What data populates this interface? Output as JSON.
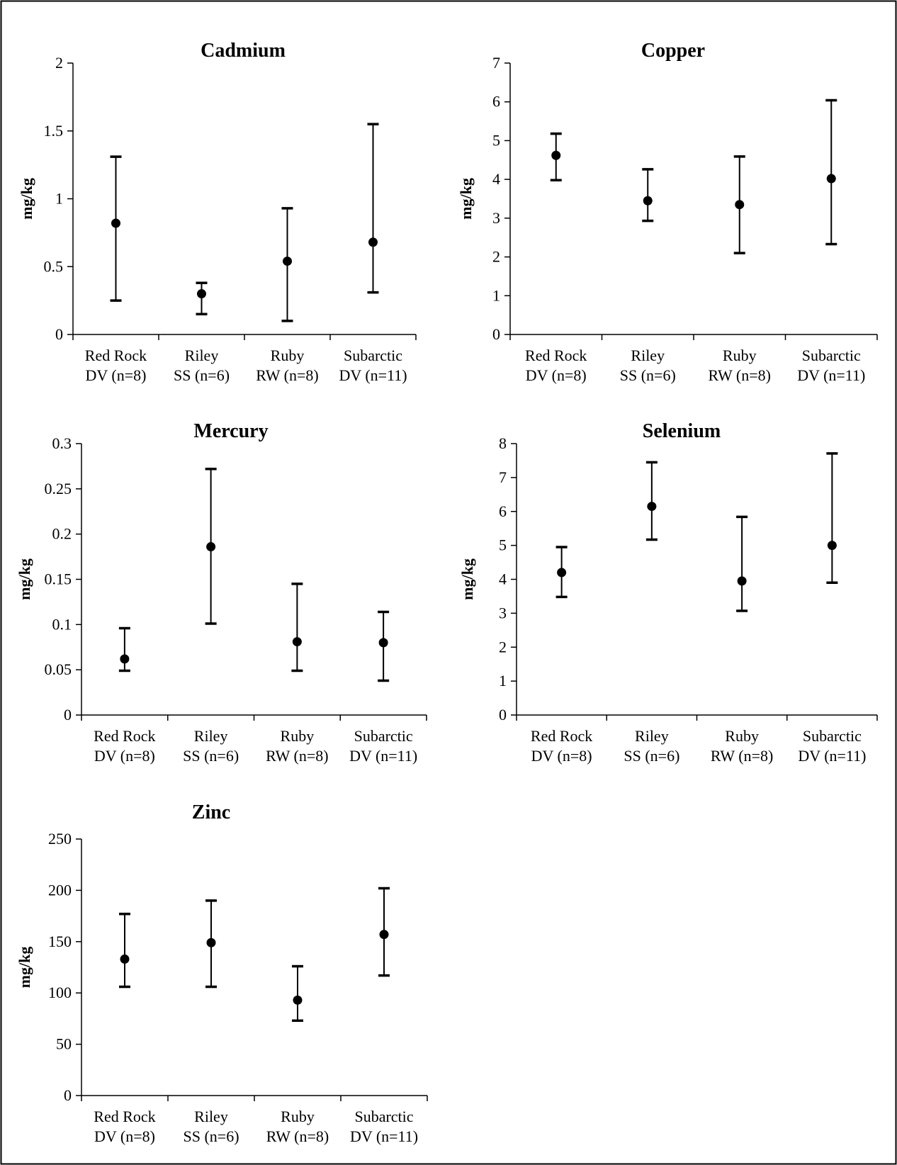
{
  "chart_data": [
    {
      "type": "scatter",
      "title": "Cadmium",
      "ylabel": "mg/kg",
      "xlabel": "",
      "ylim": [
        0,
        2
      ],
      "yticks": [
        0,
        0.5,
        1,
        1.5,
        2
      ],
      "ytick_labels": [
        "0",
        "0.5",
        "1",
        "1.5",
        "2"
      ],
      "categories": [
        "Red Rock DV (n=8)",
        "Riley SS (n=6)",
        "Ruby RW (n=8)",
        "Subarctic DV (n=11)"
      ],
      "category_lines": [
        [
          "Red Rock",
          "DV (n=8)"
        ],
        [
          "Riley",
          "SS (n=6)"
        ],
        [
          "Ruby",
          "RW (n=8)"
        ],
        [
          "Subarctic",
          "DV (n=11)"
        ]
      ],
      "values": [
        0.82,
        0.3,
        0.54,
        0.68
      ],
      "error_low": [
        0.25,
        0.15,
        0.1,
        0.31
      ],
      "error_high": [
        1.31,
        0.38,
        0.93,
        1.55
      ]
    },
    {
      "type": "scatter",
      "title": "Copper",
      "ylabel": "mg/kg",
      "xlabel": "",
      "ylim": [
        0,
        7
      ],
      "yticks": [
        0,
        1,
        2,
        3,
        4,
        5,
        6,
        7
      ],
      "ytick_labels": [
        "0",
        "1",
        "2",
        "3",
        "4",
        "5",
        "6",
        "7"
      ],
      "categories": [
        "Red Rock DV (n=8)",
        "Riley SS (n=6)",
        "Ruby RW (n=8)",
        "Subarctic DV (n=11)"
      ],
      "category_lines": [
        [
          "Red Rock",
          "DV (n=8)"
        ],
        [
          "Riley",
          "SS (n=6)"
        ],
        [
          "Ruby",
          "RW (n=8)"
        ],
        [
          "Subarctic",
          "DV (n=11)"
        ]
      ],
      "values": [
        4.62,
        3.45,
        3.35,
        4.02
      ],
      "error_low": [
        3.98,
        2.93,
        2.1,
        2.33
      ],
      "error_high": [
        5.18,
        4.26,
        4.59,
        6.04
      ]
    },
    {
      "type": "scatter",
      "title": "Mercury",
      "ylabel": "mg/kg",
      "xlabel": "",
      "ylim": [
        0,
        0.3
      ],
      "yticks": [
        0,
        0.05,
        0.1,
        0.15,
        0.2,
        0.25,
        0.3
      ],
      "ytick_labels": [
        "0",
        "0.05",
        "0.1",
        "0.15",
        "0.2",
        "0.25",
        "0.3"
      ],
      "categories": [
        "Red Rock DV (n=8)",
        "Riley SS (n=6)",
        "Ruby RW (n=8)",
        "Subarctic DV (n=11)"
      ],
      "category_lines": [
        [
          "Red Rock",
          "DV (n=8)"
        ],
        [
          "Riley",
          "SS (n=6)"
        ],
        [
          "Ruby",
          "RW (n=8)"
        ],
        [
          "Subarctic",
          "DV (n=11)"
        ]
      ],
      "values": [
        0.062,
        0.186,
        0.081,
        0.08
      ],
      "error_low": [
        0.049,
        0.101,
        0.049,
        0.038
      ],
      "error_high": [
        0.096,
        0.272,
        0.145,
        0.114
      ]
    },
    {
      "type": "scatter",
      "title": "Selenium",
      "ylabel": "mg/kg",
      "xlabel": "",
      "ylim": [
        0,
        8
      ],
      "yticks": [
        0,
        1,
        2,
        3,
        4,
        5,
        6,
        7,
        8
      ],
      "ytick_labels": [
        "0",
        "1",
        "2",
        "3",
        "4",
        "5",
        "6",
        "7",
        "8"
      ],
      "categories": [
        "Red Rock DV (n=8)",
        "Riley SS (n=6)",
        "Ruby RW (n=8)",
        "Subarctic DV (n=11)"
      ],
      "category_lines": [
        [
          "Red Rock",
          "DV (n=8)"
        ],
        [
          "Riley",
          "SS (n=6)"
        ],
        [
          "Ruby",
          "RW (n=8)"
        ],
        [
          "Subarctic",
          "DV (n=11)"
        ]
      ],
      "values": [
        4.2,
        6.15,
        3.95,
        5.0
      ],
      "error_low": [
        3.48,
        5.17,
        3.07,
        3.9
      ],
      "error_high": [
        4.95,
        7.45,
        5.84,
        7.71
      ]
    },
    {
      "type": "scatter",
      "title": "Zinc",
      "ylabel": "mg/kg",
      "xlabel": "",
      "ylim": [
        0,
        250
      ],
      "yticks": [
        0,
        50,
        100,
        150,
        200,
        250
      ],
      "ytick_labels": [
        "0",
        "50",
        "100",
        "150",
        "200",
        "250"
      ],
      "categories": [
        "Red Rock DV (n=8)",
        "Riley SS (n=6)",
        "Ruby RW (n=8)",
        "Subarctic DV (n=11)"
      ],
      "category_lines": [
        [
          "Red Rock",
          "DV (n=8)"
        ],
        [
          "Riley",
          "SS (n=6)"
        ],
        [
          "Ruby",
          "RW (n=8)"
        ],
        [
          "Subarctic",
          "DV (n=11)"
        ]
      ],
      "values": [
        133,
        149,
        93,
        157
      ],
      "error_low": [
        106,
        106,
        73,
        117
      ],
      "error_high": [
        177,
        190,
        126,
        202
      ]
    }
  ]
}
